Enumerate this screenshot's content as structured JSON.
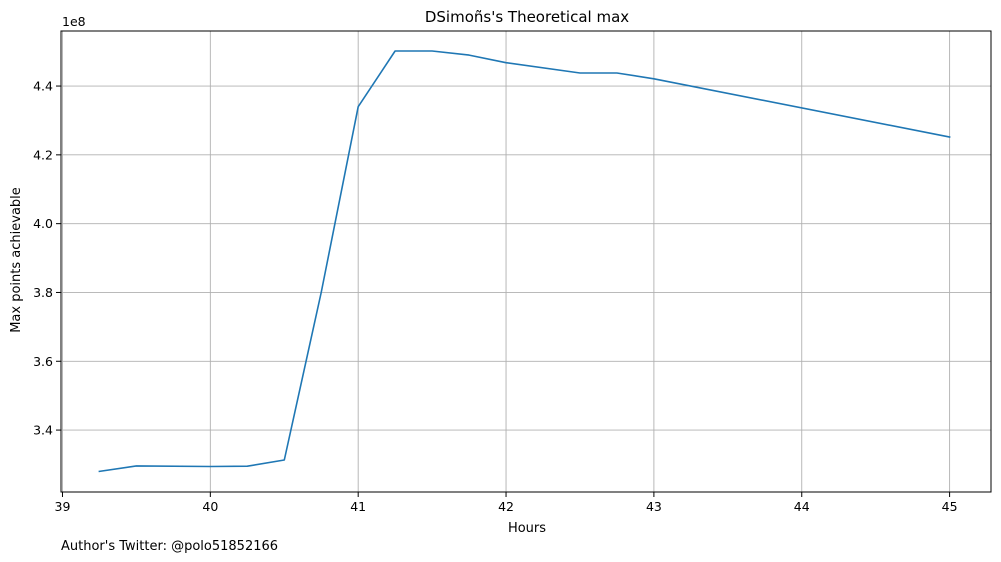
{
  "chart_data": {
    "type": "line",
    "title": "DSimoñs's Theoretical max",
    "xlabel": "Hours",
    "ylabel": "Max points achievable",
    "offset_text": "1e8",
    "scale_factor": 100000000,
    "xlim": [
      38.99,
      45.28
    ],
    "ylim": [
      322000000,
      456000000
    ],
    "xticks": [
      39,
      40,
      41,
      42,
      43,
      44,
      45
    ],
    "xtick_labels": [
      "39",
      "40",
      "41",
      "42",
      "43",
      "44",
      "45"
    ],
    "yticks": [
      340000000,
      360000000,
      380000000,
      400000000,
      420000000,
      440000000
    ],
    "ytick_labels": [
      "3.4",
      "3.6",
      "3.8",
      "4.0",
      "4.2",
      "4.4"
    ],
    "grid": true,
    "series": [
      {
        "color": "#1f77b4",
        "x": [
          39.25,
          39.5,
          40.0,
          40.25,
          40.5,
          40.75,
          41.0,
          41.25,
          41.5,
          41.75,
          42.0,
          42.5,
          42.75,
          43.0,
          45.0
        ],
        "y": [
          328000000,
          329600000,
          329400000,
          329500000,
          331300000,
          380000000,
          434000000,
          450200000,
          450200000,
          449000000,
          446800000,
          443800000,
          443800000,
          442100000,
          425200000
        ]
      }
    ],
    "annotation": "Author's Twitter: @polo51852166"
  }
}
